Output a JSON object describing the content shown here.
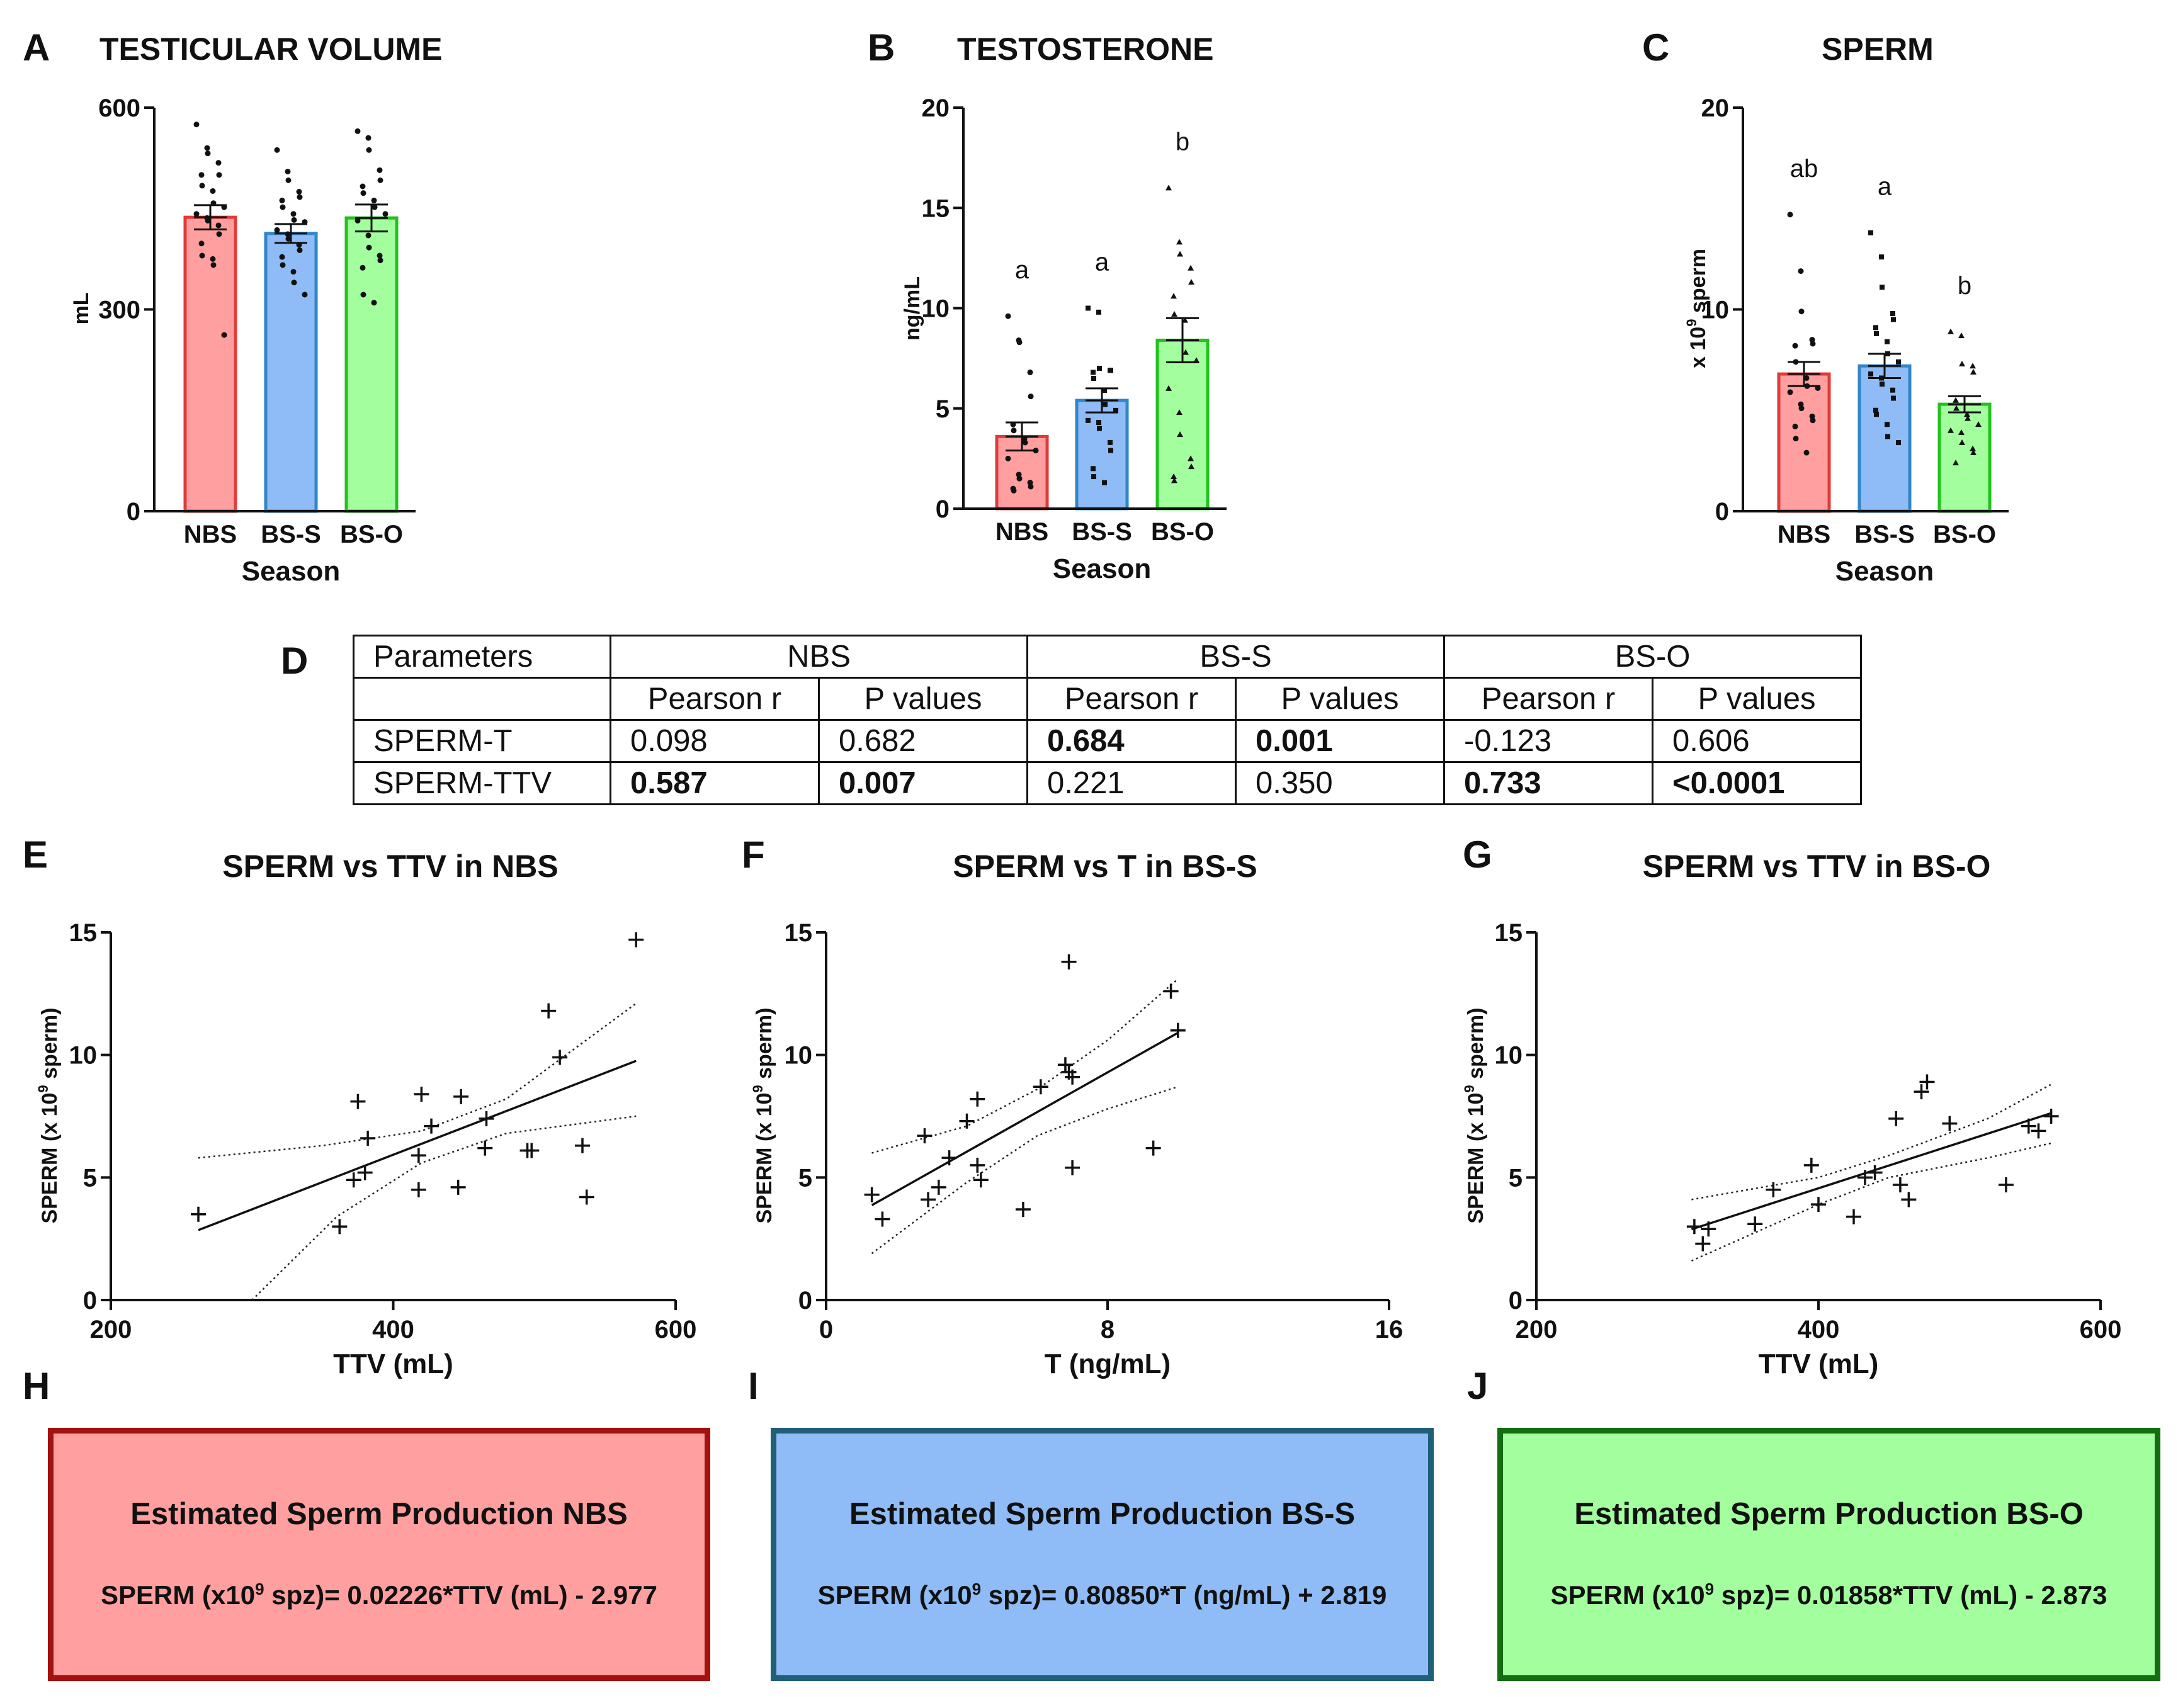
{
  "panels": {
    "A": {
      "label": "A",
      "title": "TESTICULAR VOLUME"
    },
    "B": {
      "label": "B",
      "title": "TESTOSTERONE"
    },
    "C": {
      "label": "C",
      "title": "SPERM"
    },
    "D": {
      "label": "D"
    },
    "E": {
      "label": "E",
      "title": "SPERM vs TTV in NBS"
    },
    "F": {
      "label": "F",
      "title": "SPERM vs T in BS-S"
    },
    "G": {
      "label": "G",
      "title": "SPERM vs TTV in BS-O"
    },
    "H": {
      "label": "H"
    },
    "I": {
      "label": "I"
    },
    "J": {
      "label": "J"
    }
  },
  "colors": {
    "NBS_fill": "#ff9f9f",
    "NBS_edge": "#e03b3b",
    "BSS_fill": "#8fbcf7",
    "BSS_edge": "#2f86c8",
    "BSO_fill": "#a3ff9e",
    "BSO_edge": "#22c11e"
  },
  "chart_data": [
    {
      "id": "A",
      "type": "bar",
      "title": "TESTICULAR VOLUME",
      "categories": [
        "NBS",
        "BS-S",
        "BS-O"
      ],
      "xlabel": "Season",
      "ylabel": "mL",
      "ylim": [
        0,
        600
      ],
      "yticks": [
        0,
        300,
        600
      ],
      "values": [
        437,
        413,
        436
      ],
      "sem": [
        18,
        14,
        20
      ],
      "letters": [],
      "points": [
        [
          575,
          540,
          532,
          518,
          500,
          500,
          484,
          476,
          458,
          452,
          442,
          436,
          432,
          425,
          412,
          398,
          380,
          375,
          366,
          262
        ],
        [
          537,
          505,
          492,
          475,
          467,
          462,
          452,
          442,
          433,
          430,
          418,
          412,
          405,
          396,
          388,
          378,
          366,
          356,
          340,
          322
        ],
        [
          565,
          555,
          537,
          507,
          492,
          483,
          473,
          462,
          452,
          442,
          432,
          410,
          392,
          380,
          373,
          362,
          322,
          310
        ]
      ]
    },
    {
      "id": "B",
      "type": "bar",
      "title": "TESTOSTERONE",
      "categories": [
        "NBS",
        "BS-S",
        "BS-O"
      ],
      "xlabel": "Season",
      "ylabel": "ng/mL",
      "ylim": [
        0,
        20
      ],
      "yticks": [
        0,
        5,
        10,
        15,
        20
      ],
      "values": [
        3.6,
        5.4,
        8.4
      ],
      "sem": [
        0.7,
        0.6,
        1.1
      ],
      "letters": [
        "a",
        "a",
        "b"
      ],
      "points": [
        [
          9.6,
          8.4,
          8.3,
          6.8,
          5.6,
          4.2,
          3.9,
          3.5,
          3.3,
          2.9,
          2.5,
          1.7,
          1.5,
          1.3,
          1.1,
          1.0,
          0.9
        ],
        [
          10.0,
          9.8,
          7.0,
          6.9,
          6.9,
          6.8,
          6.5,
          5.9,
          5.2,
          4.9,
          4.4,
          4.3,
          4.0,
          3.3,
          2.9,
          2.0,
          1.6,
          1.3
        ],
        [
          16.0,
          13.3,
          12.7,
          12.0,
          11.3,
          10.6,
          9.7,
          9.4,
          7.8,
          7.4,
          6.0,
          4.8,
          3.7,
          2.5,
          2.1,
          1.6,
          1.4
        ]
      ]
    },
    {
      "id": "C",
      "type": "bar",
      "title": "SPERM",
      "categories": [
        "NBS",
        "BS-S",
        "BS-O"
      ],
      "xlabel": "Season",
      "ylabel": "x 10^9 sperm",
      "ylim": [
        0,
        20
      ],
      "yticks": [
        0,
        10,
        20
      ],
      "values": [
        6.8,
        7.2,
        5.3
      ],
      "sem": [
        0.6,
        0.6,
        0.4
      ],
      "letters": [
        "ab",
        "a",
        "b"
      ],
      "points": [
        [
          14.7,
          11.9,
          9.9,
          8.5,
          8.3,
          8.2,
          7.4,
          6.6,
          6.2,
          6.1,
          5.9,
          5.3,
          5.1,
          4.7,
          4.5,
          4.2,
          3.6,
          2.9
        ],
        [
          13.8,
          12.6,
          11.1,
          9.8,
          9.5,
          9.1,
          8.8,
          8.4,
          7.8,
          7.4,
          6.8,
          6.6,
          6.3,
          6.0,
          5.6,
          5.0,
          4.8,
          4.3,
          3.7,
          3.4
        ],
        [
          8.9,
          8.7,
          7.3,
          7.2,
          6.9,
          5.5,
          5.1,
          4.8,
          4.6,
          4.3,
          4.0,
          3.9,
          3.4,
          3.1,
          2.9,
          2.4
        ]
      ]
    },
    {
      "id": "E",
      "type": "scatter",
      "title": "SPERM vs TTV in NBS",
      "xlabel": "TTV (mL)",
      "ylabel": "SPERM (x 10^9 sperm)",
      "xlim": [
        200,
        600
      ],
      "ylim": [
        0,
        15
      ],
      "xticks": [
        200,
        400,
        600
      ],
      "yticks": [
        0,
        5,
        10,
        15
      ],
      "fit": {
        "slope": 0.02226,
        "intercept": -2.977,
        "x_range": [
          262,
          572
        ]
      },
      "band_upper": [
        [
          262,
          5.8
        ],
        [
          350,
          6.3
        ],
        [
          420,
          6.9
        ],
        [
          480,
          8.2
        ],
        [
          572,
          12.1
        ]
      ],
      "band_lower": [
        [
          300,
          0.0
        ],
        [
          360,
          3.4
        ],
        [
          420,
          5.6
        ],
        [
          480,
          6.8
        ],
        [
          572,
          7.5
        ]
      ],
      "points": [
        [
          262,
          3.5
        ],
        [
          362,
          3.0
        ],
        [
          372,
          4.9
        ],
        [
          375,
          8.1
        ],
        [
          380,
          5.2
        ],
        [
          382,
          6.6
        ],
        [
          418,
          4.5
        ],
        [
          418,
          5.9
        ],
        [
          420,
          8.4
        ],
        [
          427,
          7.1
        ],
        [
          446,
          4.6
        ],
        [
          448,
          8.3
        ],
        [
          465,
          6.2
        ],
        [
          466,
          7.4
        ],
        [
          495,
          6.1
        ],
        [
          498,
          6.1
        ],
        [
          510,
          11.8
        ],
        [
          518,
          9.9
        ],
        [
          534,
          6.3
        ],
        [
          537,
          4.2
        ],
        [
          572,
          14.7
        ]
      ]
    },
    {
      "id": "F",
      "type": "scatter",
      "title": "SPERM vs T in BS-S",
      "xlabel": "T (ng/mL)",
      "ylabel": "SPERM (x 10^9 sperm)",
      "xlim": [
        0,
        16
      ],
      "ylim": [
        0,
        15
      ],
      "xticks": [
        0,
        8,
        16
      ],
      "yticks": [
        0,
        5,
        10,
        15
      ],
      "fit": {
        "slope": 0.8085,
        "intercept": 2.819,
        "x_range": [
          1.3,
          10.0
        ]
      },
      "band_upper": [
        [
          1.3,
          6.0
        ],
        [
          4.0,
          7.1
        ],
        [
          6.0,
          8.6
        ],
        [
          8.0,
          10.6
        ],
        [
          10.0,
          13.1
        ]
      ],
      "band_lower": [
        [
          1.3,
          1.9
        ],
        [
          4.0,
          4.8
        ],
        [
          6.0,
          6.7
        ],
        [
          8.0,
          7.8
        ],
        [
          10.0,
          8.7
        ]
      ],
      "points": [
        [
          1.3,
          4.3
        ],
        [
          1.6,
          3.3
        ],
        [
          2.8,
          6.7
        ],
        [
          2.9,
          4.1
        ],
        [
          3.2,
          4.6
        ],
        [
          3.5,
          5.8
        ],
        [
          4.0,
          7.3
        ],
        [
          4.3,
          8.2
        ],
        [
          4.3,
          5.5
        ],
        [
          4.4,
          4.9
        ],
        [
          5.6,
          3.7
        ],
        [
          6.1,
          8.7
        ],
        [
          6.8,
          9.6
        ],
        [
          6.9,
          13.8
        ],
        [
          6.9,
          9.3
        ],
        [
          7.0,
          9.1
        ],
        [
          7.0,
          5.4
        ],
        [
          9.3,
          6.2
        ],
        [
          9.8,
          12.6
        ],
        [
          10.0,
          11.0
        ]
      ]
    },
    {
      "id": "G",
      "type": "scatter",
      "title": "SPERM vs TTV in BS-O",
      "xlabel": "TTV (mL)",
      "ylabel": "SPERM (x 10^9 sperm)",
      "xlim": [
        200,
        600
      ],
      "ylim": [
        0,
        15
      ],
      "xticks": [
        200,
        400,
        600
      ],
      "yticks": [
        0,
        5,
        10,
        15
      ],
      "fit": {
        "slope": 0.01858,
        "intercept": -2.873,
        "x_range": [
          310,
          565
        ]
      },
      "band_upper": [
        [
          310,
          4.1
        ],
        [
          400,
          5.0
        ],
        [
          450,
          5.9
        ],
        [
          520,
          7.4
        ],
        [
          565,
          8.8
        ]
      ],
      "band_lower": [
        [
          310,
          1.6
        ],
        [
          400,
          3.9
        ],
        [
          450,
          5.0
        ],
        [
          520,
          5.8
        ],
        [
          565,
          6.4
        ]
      ],
      "points": [
        [
          312,
          3.0
        ],
        [
          318,
          2.3
        ],
        [
          322,
          2.9
        ],
        [
          355,
          3.1
        ],
        [
          368,
          4.5
        ],
        [
          395,
          5.5
        ],
        [
          400,
          3.9
        ],
        [
          425,
          3.4
        ],
        [
          433,
          5.0
        ],
        [
          440,
          5.2
        ],
        [
          455,
          7.4
        ],
        [
          458,
          4.7
        ],
        [
          464,
          4.1
        ],
        [
          473,
          8.5
        ],
        [
          477,
          8.9
        ],
        [
          493,
          7.2
        ],
        [
          533,
          4.7
        ],
        [
          549,
          7.1
        ],
        [
          556,
          6.9
        ],
        [
          565,
          7.5
        ]
      ]
    }
  ],
  "table": {
    "header1": [
      "Parameters",
      "NBS",
      "BS-S",
      "BS-O"
    ],
    "header2": [
      "",
      "Pearson r",
      "P values",
      "Pearson r",
      "P values",
      "Pearson r",
      "P values"
    ],
    "rows": [
      {
        "param": "SPERM-T",
        "cells": [
          "0.098",
          "0.682",
          "0.684",
          "0.001",
          "-0.123",
          "0.606"
        ],
        "bold": [
          false,
          false,
          true,
          true,
          false,
          false
        ]
      },
      {
        "param": "SPERM-TTV",
        "cells": [
          "0.587",
          "0.007",
          "0.221",
          "0.350",
          "0.733",
          "<0.0001"
        ],
        "bold": [
          true,
          true,
          false,
          false,
          true,
          true
        ]
      }
    ]
  },
  "equations": [
    {
      "title": "Estimated Sperm Production NBS",
      "prefix": "SPERM (x10",
      "exp": "9",
      "suffix": " spz)= 0.02226*TTV (mL) - 2.977",
      "fill": "#ff9f9f",
      "border": "#a31111"
    },
    {
      "title": "Estimated Sperm Production BS-S",
      "prefix": "SPERM (x10",
      "exp": "9",
      "suffix": " spz)= 0.80850*T (ng/mL) + 2.819",
      "fill": "#8fbcf7",
      "border": "#1f5f78"
    },
    {
      "title": "Estimated Sperm Production BS-O",
      "prefix": "SPERM (x10",
      "exp": "9",
      "suffix": " spz)= 0.01858*TTV (mL) - 2.873",
      "fill": "#a3ff9e",
      "border": "#136e12"
    }
  ]
}
